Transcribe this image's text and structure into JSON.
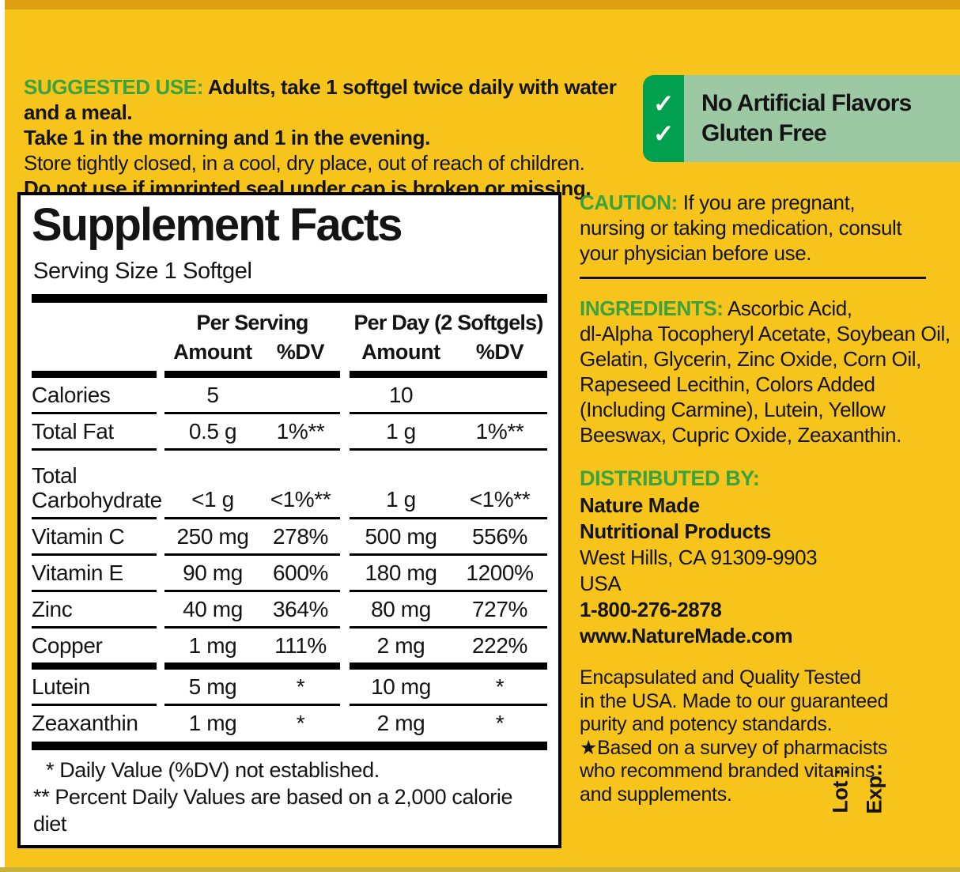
{
  "colors": {
    "background_yellow": "#F6C41A",
    "top_edge": "#DD9F10",
    "bottom_edge": "#C8B23A",
    "heading_green": "#3AA33F",
    "badge_tab_green": "#00A04E",
    "badge_panel_green": "#9CC8A3",
    "text_black": "#141414"
  },
  "suggested_use": {
    "label": "SUGGESTED USE:",
    "line1": "Adults, take 1 softgel twice daily with water and a meal.",
    "line2": "Take 1 in the morning and 1 in the evening.",
    "line3": "Store tightly closed, in a cool, dry place, out of reach of children.",
    "line4": "Do not use if imprinted seal under cap is broken or missing."
  },
  "badges": {
    "check": "✓",
    "items": [
      {
        "label": "No Artificial Flavors"
      },
      {
        "label": "Gluten Free"
      }
    ]
  },
  "supplement_facts": {
    "title": "Supplement Facts",
    "serving_size": "Serving Size 1 Softgel",
    "col_groups": {
      "per_serving": "Per Serving",
      "per_day": "Per Day (2 Softgels)"
    },
    "col_headers": {
      "amount": "Amount",
      "dv": "%DV"
    },
    "rows": [
      {
        "name": "Calories",
        "ps_amount": "5",
        "ps_dv": "",
        "pd_amount": "10",
        "pd_dv": ""
      },
      {
        "name": "Total Fat",
        "ps_amount": "0.5 g",
        "ps_dv": "1%**",
        "pd_amount": "1 g",
        "pd_dv": "1%**"
      },
      {
        "name": "Total Carbohydrate",
        "ps_amount": "<1 g",
        "ps_dv": "<1%**",
        "pd_amount": "1 g",
        "pd_dv": "<1%**"
      },
      {
        "name": "Vitamin C",
        "ps_amount": "250 mg",
        "ps_dv": "278%",
        "pd_amount": "500 mg",
        "pd_dv": "556%"
      },
      {
        "name": "Vitamin E",
        "ps_amount": "90 mg",
        "ps_dv": "600%",
        "pd_amount": "180 mg",
        "pd_dv": "1200%"
      },
      {
        "name": "Zinc",
        "ps_amount": "40 mg",
        "ps_dv": "364%",
        "pd_amount": "80 mg",
        "pd_dv": "727%"
      },
      {
        "name": "Copper",
        "ps_amount": "1 mg",
        "ps_dv": "111%",
        "pd_amount": "2 mg",
        "pd_dv": "222%"
      },
      {
        "name": "Lutein",
        "ps_amount": "5 mg",
        "ps_dv": "*",
        "pd_amount": "10 mg",
        "pd_dv": "*"
      },
      {
        "name": "Zeaxanthin",
        "ps_amount": "1 mg",
        "ps_dv": "*",
        "pd_amount": "2 mg",
        "pd_dv": "*"
      }
    ],
    "footnotes": [
      "* Daily Value (%DV) not established.",
      "** Percent Daily Values are based on a 2,000 calorie diet"
    ]
  },
  "caution": {
    "label": "CAUTION:",
    "lines": [
      "If you are pregnant,",
      "nursing or taking medication, consult",
      "your physician before use."
    ]
  },
  "ingredients": {
    "label": "INGREDIENTS:",
    "lines": [
      "Ascorbic Acid,",
      "dl-Alpha Tocopheryl Acetate, Soybean Oil,",
      "Gelatin, Glycerin, Zinc Oxide, Corn Oil,",
      "Rapeseed Lecithin, Colors Added",
      "(Including Carmine), Lutein, Yellow",
      "Beeswax, Cupric Oxide, Zeaxanthin."
    ]
  },
  "distributed_by": {
    "label": "DISTRIBUTED BY:",
    "lines": [
      {
        "text": "Nature Made",
        "bold": true
      },
      {
        "text": "Nutritional Products",
        "bold": true
      },
      {
        "text": "West Hills, CA 91309-9903",
        "bold": false
      },
      {
        "text": "USA",
        "bold": false
      },
      {
        "text": "1-800-276-2878",
        "bold": true
      },
      {
        "text": "www.NatureMade.com",
        "bold": true
      }
    ]
  },
  "quality": {
    "lines": [
      "Encapsulated and Quality Tested",
      "in the USA. Made to our guaranteed",
      "purity and potency standards.",
      "★Based on a survey of pharmacists",
      "who recommend branded vitamins",
      "and supplements."
    ]
  },
  "lot_exp": {
    "lot": "Lot :",
    "exp": "Exp.:"
  }
}
